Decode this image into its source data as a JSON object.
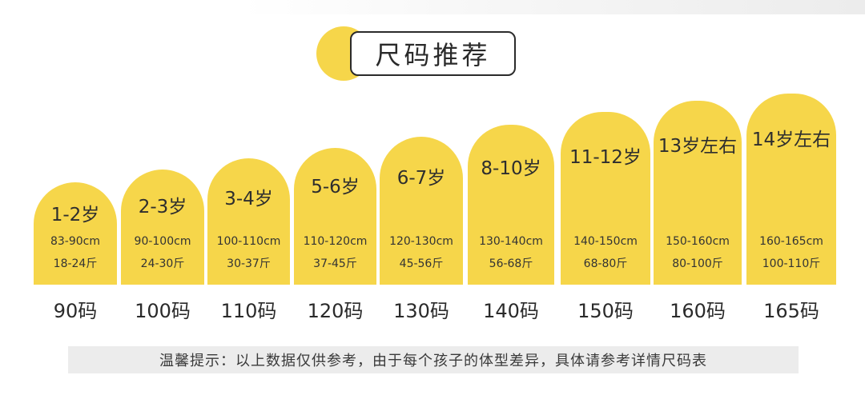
{
  "header": {
    "title": "尺码推荐"
  },
  "colors": {
    "card_fill": "#f6d64a",
    "text": "#2a2a2a",
    "tip_background": "#ececec"
  },
  "sizes": [
    {
      "age": "1-2岁",
      "height": "83-90cm",
      "weight": "18-24斤",
      "size": "90码"
    },
    {
      "age": "2-3岁",
      "height": "90-100cm",
      "weight": "24-30斤",
      "size": "100码"
    },
    {
      "age": "3-4岁",
      "height": "100-110cm",
      "weight": "30-37斤",
      "size": "110码"
    },
    {
      "age": "5-6岁",
      "height": "110-120cm",
      "weight": "37-45斤",
      "size": "120码"
    },
    {
      "age": "6-7岁",
      "height": "120-130cm",
      "weight": "45-56斤",
      "size": "130码"
    },
    {
      "age": "8-10岁",
      "height": "130-140cm",
      "weight": "56-68斤",
      "size": "140码"
    },
    {
      "age": "11-12岁",
      "height": "140-150cm",
      "weight": "68-80斤",
      "size": "150码"
    },
    {
      "age": "13岁左右",
      "height": "150-160cm",
      "weight": "80-100斤",
      "size": "160码"
    },
    {
      "age": "14岁左右",
      "height": "160-165cm",
      "weight": "100-110斤",
      "size": "165码"
    }
  ],
  "footer": {
    "tip": "温馨提示：以上数据仅供参考，由于每个孩子的体型差异，具体请参考详情尺码表"
  }
}
